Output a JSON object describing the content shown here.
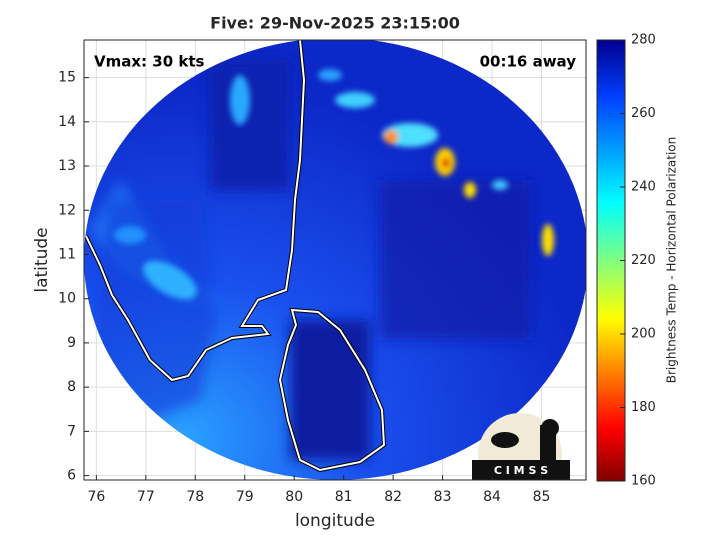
{
  "title": "Five: 29-Nov-2025 23:15:00",
  "annotations": {
    "vmax": "Vmax: 30 kts",
    "away": "00:16 away"
  },
  "x_axis": {
    "label": "longitude",
    "lim": [
      75.75,
      85.9
    ],
    "ticks": [
      76,
      77,
      78,
      79,
      80,
      81,
      82,
      83,
      84,
      85
    ]
  },
  "y_axis": {
    "label": "latitude",
    "lim": [
      5.9,
      15.85
    ],
    "ticks": [
      6,
      7,
      8,
      9,
      10,
      11,
      12,
      13,
      14,
      15
    ]
  },
  "colorbar": {
    "label": "Brightness Temp - Horizontal Polarization",
    "lim": [
      160,
      280
    ],
    "ticks": [
      160,
      180,
      200,
      220,
      240,
      260,
      280
    ]
  },
  "logo": "C I M S S"
}
